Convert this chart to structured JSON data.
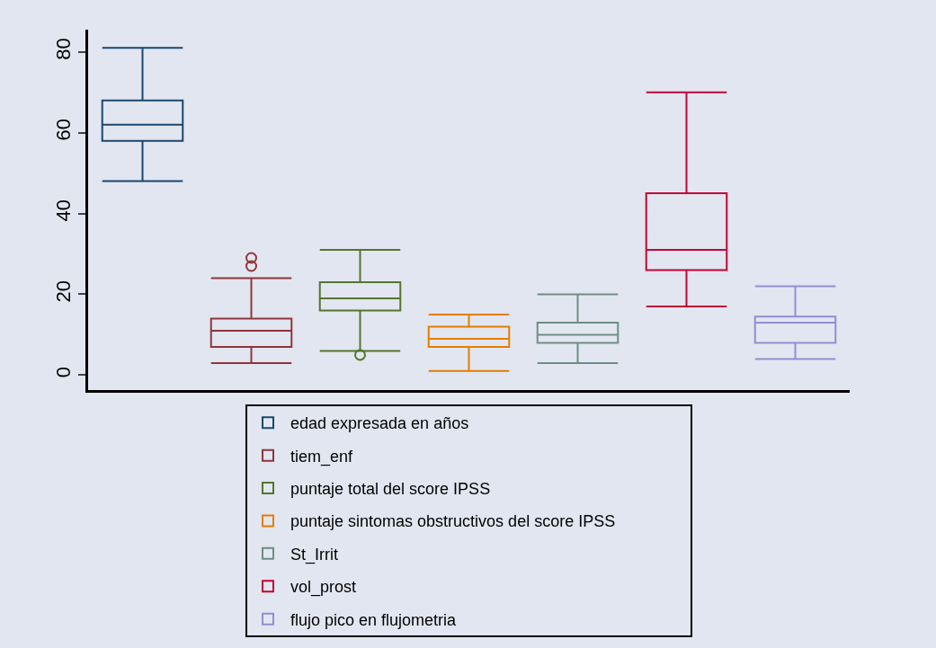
{
  "chart_data": {
    "type": "box",
    "categories": [
      null,
      null,
      null,
      null,
      null,
      null,
      null
    ],
    "ylim": [
      -3.7,
      85.5
    ],
    "yticks": [
      0,
      20,
      40,
      60,
      80
    ],
    "grid": false,
    "legend": "bottom",
    "tick_labels": "y",
    "marker": "circle",
    "series": [
      {
        "name": "edad expresada en años",
        "color": "#1a476f",
        "boxes": [
          {
            "low": 48,
            "q1": 58,
            "median": 62,
            "q3": 68,
            "high": 81
          },
          null,
          null,
          null,
          null,
          null,
          null
        ]
      },
      {
        "name": "tiem_enf",
        "color": "#90353b",
        "boxes": [
          null,
          {
            "low": 3,
            "q1": 7,
            "median": 11,
            "q3": 14,
            "high": 24,
            "outliers": [
              27,
              29
            ]
          },
          null,
          null,
          null,
          null,
          null
        ]
      },
      {
        "name": "puntaje total del score IPSS",
        "color": "#55752f",
        "boxes": [
          null,
          null,
          {
            "low": 6,
            "q1": 16,
            "median": 19,
            "q3": 23,
            "high": 31,
            "outliers": [
              5
            ]
          },
          null,
          null,
          null,
          null
        ]
      },
      {
        "name": "puntaje sintomas obstructivos del score IPSS",
        "color": "#e37e00",
        "boxes": [
          null,
          null,
          null,
          {
            "low": 1,
            "q1": 7,
            "median": 9,
            "q3": 12,
            "high": 15
          },
          null,
          null,
          null
        ]
      },
      {
        "name": "St_Irrit",
        "color": "#6e8e84",
        "boxes": [
          null,
          null,
          null,
          null,
          {
            "low": 3,
            "q1": 8,
            "median": 10,
            "q3": 13,
            "high": 20
          },
          null,
          null
        ]
      },
      {
        "name": "vol_prost",
        "color": "#c10534",
        "boxes": [
          null,
          null,
          null,
          null,
          null,
          {
            "low": 17,
            "q1": 26,
            "median": 31,
            "q3": 45,
            "high": 70
          },
          null
        ]
      },
      {
        "name": "flujo pico en flujometria",
        "color": "#938dd2",
        "boxes": [
          null,
          null,
          null,
          null,
          null,
          null,
          {
            "low": 4,
            "q1": 8,
            "median": 13,
            "q3": 14.5,
            "high": 22
          }
        ]
      }
    ]
  }
}
